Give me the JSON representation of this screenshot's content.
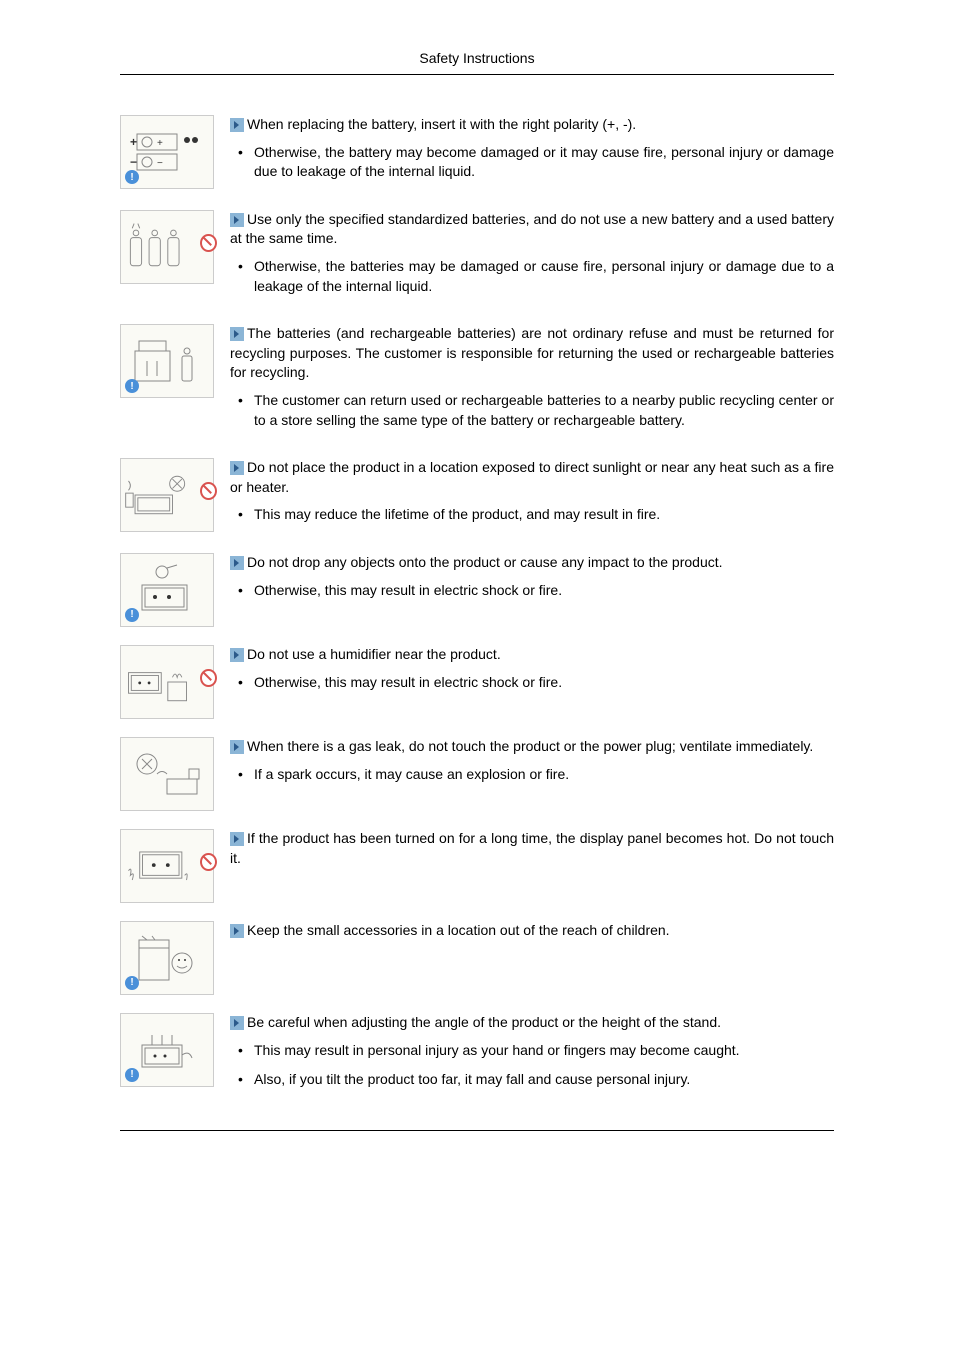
{
  "header": "Safety Instructions",
  "instructions": [
    {
      "badge": "info",
      "heading": "When replacing the battery, insert it with the right polarity (+, -).",
      "bullets": [
        "Otherwise, the battery may become damaged or it may cause fire, personal injury or damage due to leakage of the internal liquid."
      ]
    },
    {
      "badge": "prohibit",
      "heading": "Use only the specified standardized batteries, and do not use a new battery and a used battery at the same time.",
      "bullets": [
        "Otherwise, the batteries may be damaged or cause fire, personal injury or damage due to a leakage of the internal liquid."
      ]
    },
    {
      "badge": "info",
      "heading": "The batteries (and rechargeable batteries) are not ordinary refuse and must be returned for recycling purposes. The customer is responsible for returning the used or rechargeable batteries for recycling.",
      "bullets": [
        "The customer can return used or rechargeable batteries to a nearby public recycling center or to a store selling the same type of the battery or rechargeable battery."
      ]
    },
    {
      "badge": "prohibit",
      "heading": "Do not place the product in a location exposed to direct sunlight or near any heat such as a fire or heater.",
      "bullets": [
        "This may reduce the lifetime of the product, and may result in fire."
      ]
    },
    {
      "badge": "info",
      "heading": "Do not drop any objects onto the product or cause any impact to the product.",
      "bullets": [
        "Otherwise, this may result in electric shock or fire."
      ]
    },
    {
      "badge": "prohibit",
      "heading": "Do not use a humidifier near the product.",
      "bullets": [
        "Otherwise, this may result in electric shock or fire."
      ]
    },
    {
      "badge": "none",
      "heading": "When there is a gas leak, do not touch the product or the power plug; ventilate immediately.",
      "bullets": [
        "If a spark occurs, it may cause an explosion or fire."
      ]
    },
    {
      "badge": "prohibit",
      "heading": "If the product has been turned on for a long time, the display panel becomes hot. Do not touch it.",
      "bullets": []
    },
    {
      "badge": "info",
      "heading": "Keep the small accessories in a location out of the reach of children.",
      "bullets": []
    },
    {
      "badge": "info",
      "heading": "Be careful when adjusting the angle of the product or the height of the stand.",
      "bullets": [
        "This may result in personal injury as your hand or fingers may become caught.",
        "Also, if you tilt the product too far, it may fall and cause personal injury."
      ]
    }
  ]
}
